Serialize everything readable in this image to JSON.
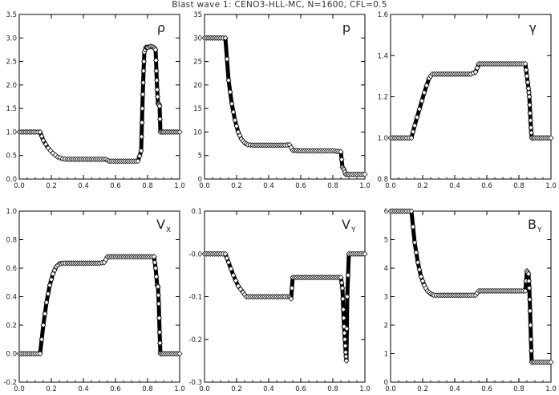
{
  "title": "Blast wave 1: CENO3-HLL-MC, N=1600, CFL=0.5",
  "chart_data": [
    {
      "type": "scatter",
      "panel_label": "ρ",
      "panel_sub": "",
      "xlim": [
        0,
        1
      ],
      "ylim": [
        0,
        3.5
      ],
      "xticks": [
        0.0,
        0.2,
        0.4,
        0.6,
        0.8,
        1.0
      ],
      "xtick_labels": [
        "0.0",
        "0.2",
        "0.4",
        "0.6",
        "0.8",
        "1.0"
      ],
      "yticks": [
        0,
        0.5,
        1.0,
        1.5,
        2.0,
        2.5,
        3.0,
        3.5
      ],
      "ytick_labels": [
        "0.0",
        "0.5",
        "1.0",
        "1.5",
        "2.0",
        "2.5",
        "3.0",
        "3.5"
      ],
      "series": [
        {
          "x": [
            0.0,
            0.05,
            0.1,
            0.13,
            0.15,
            0.18,
            0.21,
            0.24,
            0.27,
            0.3,
            0.35,
            0.4,
            0.45,
            0.5,
            0.54,
            0.56,
            0.6,
            0.65,
            0.7,
            0.74,
            0.76,
            0.765,
            0.77,
            0.775,
            0.78,
            0.79,
            0.8,
            0.82,
            0.84,
            0.85,
            0.855,
            0.86,
            0.865,
            0.87,
            0.875,
            0.88,
            0.9,
            0.95,
            1.0
          ],
          "y": [
            1.0,
            1.0,
            1.0,
            1.0,
            0.82,
            0.66,
            0.55,
            0.47,
            0.43,
            0.42,
            0.42,
            0.42,
            0.42,
            0.42,
            0.42,
            0.38,
            0.38,
            0.38,
            0.38,
            0.38,
            0.6,
            1.2,
            1.8,
            2.3,
            2.7,
            2.8,
            2.8,
            2.82,
            2.8,
            2.75,
            2.3,
            1.9,
            1.6,
            1.6,
            1.55,
            1.0,
            1.0,
            1.0,
            1.0
          ]
        }
      ]
    },
    {
      "type": "scatter",
      "panel_label": "p",
      "panel_sub": "",
      "xlim": [
        0,
        1
      ],
      "ylim": [
        0,
        35
      ],
      "xticks": [
        0.0,
        0.2,
        0.4,
        0.6,
        0.8,
        1.0
      ],
      "xtick_labels": [
        "0.0",
        "0.2",
        "0.4",
        "0.6",
        "0.8",
        "1.0"
      ],
      "yticks": [
        0,
        5,
        10,
        15,
        20,
        25,
        30,
        35
      ],
      "ytick_labels": [
        "0",
        "5",
        "10",
        "15",
        "20",
        "25",
        "30",
        "35"
      ],
      "series": [
        {
          "x": [
            0.0,
            0.05,
            0.1,
            0.13,
            0.15,
            0.17,
            0.19,
            0.21,
            0.23,
            0.25,
            0.27,
            0.3,
            0.35,
            0.4,
            0.45,
            0.5,
            0.53,
            0.55,
            0.6,
            0.65,
            0.7,
            0.75,
            0.8,
            0.85,
            0.86,
            0.87,
            0.88,
            0.9,
            0.95,
            1.0
          ],
          "y": [
            30,
            30,
            30,
            30,
            21,
            16,
            12.5,
            10,
            8.5,
            7.7,
            7.3,
            7.2,
            7.2,
            7.2,
            7.2,
            7.2,
            7.3,
            6.1,
            6.0,
            6.0,
            6.0,
            6.0,
            6.0,
            5.8,
            2.5,
            2.0,
            1.0,
            1.0,
            1.0,
            1.0
          ]
        }
      ]
    },
    {
      "type": "scatter",
      "panel_label": "γ",
      "panel_sub": "",
      "xlim": [
        0,
        1
      ],
      "ylim": [
        0.8,
        1.6
      ],
      "xticks": [
        0.0,
        0.2,
        0.4,
        0.6,
        0.8,
        1.0
      ],
      "xtick_labels": [
        "0.0",
        "0.2",
        "0.4",
        "0.6",
        "0.8",
        "1.0"
      ],
      "yticks": [
        0.8,
        1.0,
        1.2,
        1.4,
        1.6
      ],
      "ytick_labels": [
        "0.8",
        "1.0",
        "1.2",
        "1.4",
        "1.6"
      ],
      "series": [
        {
          "x": [
            0.0,
            0.05,
            0.1,
            0.13,
            0.15,
            0.18,
            0.21,
            0.24,
            0.26,
            0.3,
            0.35,
            0.4,
            0.45,
            0.5,
            0.53,
            0.55,
            0.6,
            0.65,
            0.7,
            0.75,
            0.8,
            0.84,
            0.85,
            0.86,
            0.865,
            0.87,
            0.875,
            0.88,
            0.9,
            0.95,
            1.0
          ],
          "y": [
            1.0,
            1.0,
            1.0,
            1.0,
            1.06,
            1.14,
            1.22,
            1.29,
            1.31,
            1.31,
            1.31,
            1.31,
            1.31,
            1.31,
            1.32,
            1.36,
            1.36,
            1.36,
            1.36,
            1.36,
            1.36,
            1.36,
            1.3,
            1.24,
            1.2,
            1.12,
            1.05,
            1.0,
            1.0,
            1.0,
            1.0
          ]
        }
      ]
    },
    {
      "type": "scatter",
      "panel_label": "V",
      "panel_sub": "X",
      "xlim": [
        0,
        1
      ],
      "ylim": [
        -0.2,
        1.0
      ],
      "xticks": [
        0.0,
        0.2,
        0.4,
        0.6,
        0.8,
        1.0
      ],
      "xtick_labels": [
        "0.0",
        "0.2",
        "0.4",
        "0.6",
        "0.8",
        "1.0"
      ],
      "yticks": [
        -0.2,
        0.0,
        0.2,
        0.4,
        0.6,
        0.8,
        1.0
      ],
      "ytick_labels": [
        "-0.2",
        "0.0",
        "0.2",
        "0.4",
        "0.6",
        "0.8",
        "1.0"
      ],
      "series": [
        {
          "x": [
            0.0,
            0.05,
            0.1,
            0.13,
            0.15,
            0.17,
            0.19,
            0.21,
            0.23,
            0.25,
            0.27,
            0.3,
            0.35,
            0.4,
            0.45,
            0.5,
            0.53,
            0.55,
            0.6,
            0.65,
            0.7,
            0.75,
            0.8,
            0.84,
            0.85,
            0.86,
            0.865,
            0.87,
            0.875,
            0.88,
            0.9,
            0.95,
            1.0
          ],
          "y": [
            0.0,
            0.0,
            0.0,
            0.0,
            0.2,
            0.36,
            0.48,
            0.56,
            0.61,
            0.63,
            0.635,
            0.635,
            0.635,
            0.635,
            0.635,
            0.635,
            0.64,
            0.68,
            0.68,
            0.68,
            0.68,
            0.68,
            0.68,
            0.68,
            0.6,
            0.48,
            0.47,
            0.35,
            0.15,
            0.0,
            0.0,
            0.0,
            0.0
          ]
        }
      ]
    },
    {
      "type": "scatter",
      "panel_label": "V",
      "panel_sub": "Y",
      "xlim": [
        0,
        1
      ],
      "ylim": [
        -0.3,
        0.1
      ],
      "xticks": [
        0.0,
        0.2,
        0.4,
        0.6,
        0.8,
        1.0
      ],
      "xtick_labels": [
        "0.0",
        "0.2",
        "0.4",
        "0.6",
        "0.8",
        "1.0"
      ],
      "yticks": [
        -0.3,
        -0.2,
        -0.1,
        0.0,
        0.1
      ],
      "ytick_labels": [
        "-0.3",
        "-0.2",
        "-0.1",
        "-0.0",
        "0.1"
      ],
      "series": [
        {
          "x": [
            0.0,
            0.05,
            0.1,
            0.13,
            0.15,
            0.18,
            0.21,
            0.24,
            0.26,
            0.3,
            0.35,
            0.4,
            0.45,
            0.5,
            0.53,
            0.54,
            0.55,
            0.6,
            0.65,
            0.7,
            0.75,
            0.8,
            0.85,
            0.86,
            0.865,
            0.87,
            0.875,
            0.88,
            0.885,
            0.89,
            0.9,
            0.95,
            1.0
          ],
          "y": [
            0.0,
            0.0,
            0.0,
            0.0,
            -0.02,
            -0.05,
            -0.075,
            -0.09,
            -0.1,
            -0.1,
            -0.1,
            -0.1,
            -0.1,
            -0.1,
            -0.1,
            -0.105,
            -0.055,
            -0.055,
            -0.055,
            -0.055,
            -0.055,
            -0.055,
            -0.055,
            -0.08,
            -0.13,
            -0.17,
            -0.2,
            -0.23,
            -0.25,
            -0.1,
            0.0,
            0.0,
            0.0
          ]
        }
      ]
    },
    {
      "type": "scatter",
      "panel_label": "B",
      "panel_sub": "Y",
      "xlim": [
        0,
        1
      ],
      "ylim": [
        0,
        6
      ],
      "xticks": [
        0.0,
        0.2,
        0.4,
        0.6,
        0.8,
        1.0
      ],
      "xtick_labels": [
        "0.0",
        "0.2",
        "0.4",
        "0.6",
        "0.8",
        "1.0"
      ],
      "yticks": [
        0,
        1,
        2,
        3,
        4,
        5,
        6
      ],
      "ytick_labels": [
        "0",
        "1",
        "2",
        "3",
        "4",
        "5",
        "6"
      ],
      "series": [
        {
          "x": [
            0.0,
            0.05,
            0.1,
            0.13,
            0.15,
            0.17,
            0.19,
            0.21,
            0.23,
            0.25,
            0.27,
            0.3,
            0.35,
            0.4,
            0.45,
            0.5,
            0.53,
            0.55,
            0.6,
            0.65,
            0.7,
            0.75,
            0.8,
            0.84,
            0.85,
            0.86,
            0.865,
            0.87,
            0.875,
            0.88,
            0.9,
            0.95,
            1.0
          ],
          "y": [
            6.0,
            6.0,
            6.0,
            6.0,
            4.9,
            4.2,
            3.7,
            3.4,
            3.2,
            3.1,
            3.05,
            3.05,
            3.05,
            3.05,
            3.05,
            3.05,
            3.05,
            3.2,
            3.2,
            3.2,
            3.2,
            3.2,
            3.2,
            3.2,
            3.9,
            3.8,
            3.3,
            2.5,
            1.5,
            0.7,
            0.7,
            0.7,
            0.7
          ]
        }
      ]
    }
  ]
}
